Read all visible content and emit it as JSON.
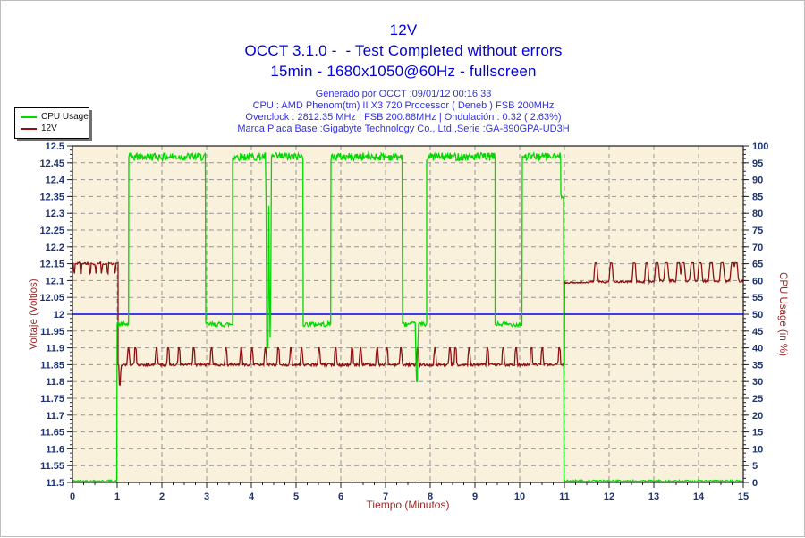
{
  "header": {
    "title_line1": "12V",
    "title_line2": "OCCT 3.1.0 -  - Test Completed without errors",
    "title_line3": "15min - 1680x1050@60Hz - fullscreen",
    "info_line1": "Generado por OCCT :09/01/12 00:16:33",
    "info_line2": "CPU : AMD Phenom(tm) II X3 720 Processor ( Deneb ) FSB 200MHz",
    "info_line3": "Overclock : 2812.35 MHz ; FSB 200.88MHz | Ondulación : 0.32 ( 2.63%)",
    "info_line4": "Marca Placa Base :Gigabyte Technology Co., Ltd.,Serie :GA-890GPA-UD3H"
  },
  "colors": {
    "title_blue": "#0000d8",
    "info_blue": "#3232dc",
    "tick_label": "#1e3472",
    "axis_title": "#9e2626",
    "grid": "#969696",
    "plot_bg": "#faf1dc",
    "plot_border": "#1a1a1a",
    "reference_blue": "#0000e6",
    "legend_bg": "#ffffff",
    "legend_border": "#000000",
    "page_bg": "#ffffff"
  },
  "legend": {
    "position": "top-left",
    "items": [
      {
        "label": "CPU Usage",
        "color": "#00d800"
      },
      {
        "label": "12V",
        "color": "#8c1212"
      }
    ]
  },
  "chart_data": {
    "type": "line",
    "title": "12V",
    "xlabel": "Tiempo (Minutos)",
    "ylabel_left": "Voltaje (Voltios)",
    "ylabel_right": "CPU Usage (in %)",
    "x_range": [
      0,
      15
    ],
    "x_tick_step": 1,
    "x_minor_step": 0.25,
    "y_left_range": [
      11.5,
      12.5
    ],
    "y_left_tick_step": 0.05,
    "y_left_minor_step": 0.0125,
    "y_right_range": [
      0,
      100
    ],
    "y_right_tick_step": 5,
    "y_right_minor_step": 1.25,
    "grid": "dashed",
    "legend_position": "top-left",
    "reference_line": {
      "axis": "left",
      "value": 12.0,
      "equivalent_right_percent": 50,
      "color": "#0000e6"
    },
    "series": [
      {
        "name": "12V",
        "axis": "left",
        "unit": "Volts",
        "color": "#8c1212",
        "description": "Idle ~12.15V before test; drops to ~11.85V under load (spikes to 11.90V) from min 1 to 11; recovers to ~12.10V with spikes to 12.15V after test",
        "segments": [
          {
            "t": [
              0,
              1.02
            ],
            "level": 12.151,
            "noise": 0.004,
            "downspikes": {
              "to": 12.121,
              "per_min": 7,
              "w": 0.018
            }
          },
          {
            "t": [
              1.02,
              11.0
            ],
            "level": 11.85,
            "noise": 0.004,
            "spikes": {
              "to": 11.9,
              "per_min": 3.2,
              "w": 0.032
            },
            "dips": [
              {
                "t": 1.06,
                "v": 11.79,
                "w": 0.025
              }
            ]
          },
          {
            "t": [
              11.0,
              11.55
            ],
            "level": 12.094,
            "noise": 0.002
          },
          {
            "t": [
              11.55,
              13.0
            ],
            "level": 12.096,
            "noise": 0.003,
            "spikes": {
              "to": 12.152,
              "per_min": 2.6,
              "w": 0.05
            }
          },
          {
            "t": [
              13.0,
              15.0
            ],
            "level": 12.099,
            "noise": 0.004,
            "spikes": {
              "to": 12.153,
              "per_min": 5.2,
              "w": 0.06
            }
          }
        ]
      },
      {
        "name": "CPU Usage",
        "axis": "right",
        "unit": "%",
        "color": "#00d800",
        "description": "0% until min 1; load alternates ~97% high plateaus with ~47% dips (at ~3.0-3.6, 5.2-5.8, 7.4-7.9, 9.5-10.1); brief deep dips to ~40% at 4.4 and ~30% at 7.7; test ends at min 11 back to 0%",
        "segments": [
          {
            "t": [
              0,
              1.0
            ],
            "level": 0.4,
            "noise": 0.3
          },
          {
            "t": [
              1.0,
              1.26
            ],
            "level": 47,
            "noise": 0.7
          },
          {
            "t": [
              1.26,
              2.98
            ],
            "level": 96.8,
            "noise": 1.2
          },
          {
            "t": [
              2.98,
              3.58
            ],
            "level": 47,
            "noise": 0.7
          },
          {
            "t": [
              3.58,
              5.16
            ],
            "level": 96.8,
            "noise": 1.2,
            "dips": [
              {
                "t": 4.36,
                "v": 40,
                "w": 0.035
              },
              {
                "t": 4.42,
                "v": 43,
                "w": 0.025
              }
            ]
          },
          {
            "t": [
              5.16,
              5.78
            ],
            "level": 47,
            "noise": 0.7
          },
          {
            "t": [
              5.78,
              7.38
            ],
            "level": 96.8,
            "noise": 1.2
          },
          {
            "t": [
              7.38,
              7.92
            ],
            "level": 47,
            "noise": 0.7,
            "dips": [
              {
                "t": 7.7,
                "v": 30,
                "w": 0.03
              }
            ]
          },
          {
            "t": [
              7.92,
              9.45
            ],
            "level": 96.8,
            "noise": 1.2
          },
          {
            "t": [
              9.45,
              10.06
            ],
            "level": 47,
            "noise": 0.7
          },
          {
            "t": [
              10.06,
              10.92
            ],
            "level": 96.8,
            "noise": 1.2
          },
          {
            "t": [
              10.92,
              10.99
            ],
            "level": 86,
            "noise": 1.5
          },
          {
            "t": [
              10.99,
              15
            ],
            "level": 0.4,
            "noise": 0.3
          }
        ]
      }
    ]
  }
}
